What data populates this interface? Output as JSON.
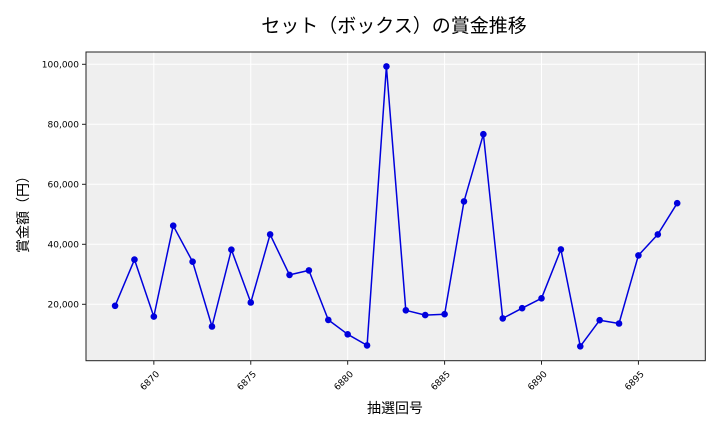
{
  "chart_data": {
    "type": "line",
    "title": "セット（ボックス）の賞金推移",
    "xlabel": "抽選回号",
    "ylabel": "賞金額（円）",
    "x": [
      6868,
      6869,
      6870,
      6871,
      6872,
      6873,
      6874,
      6875,
      6876,
      6877,
      6878,
      6879,
      6880,
      6881,
      6882,
      6883,
      6884,
      6885,
      6886,
      6887,
      6888,
      6889,
      6890,
      6891,
      6892,
      6893,
      6894,
      6895,
      6896,
      6897
    ],
    "series": [
      {
        "name": "賞金額",
        "color": "#0000dd",
        "marker": "circle",
        "values": [
          19500,
          34900,
          15900,
          46200,
          34200,
          12600,
          38200,
          20600,
          43300,
          29800,
          31300,
          14800,
          10000,
          6300,
          99300,
          18000,
          16400,
          16700,
          54300,
          76700,
          15300,
          18700,
          22000,
          38300,
          6000,
          14700,
          13600,
          36300,
          43300,
          53700
        ]
      }
    ],
    "xticks": [
      6870,
      6875,
      6880,
      6885,
      6890,
      6895
    ],
    "yticks": [
      20000,
      40000,
      60000,
      80000,
      100000
    ],
    "ytick_labels": [
      "20,000",
      "40,000",
      "60,000",
      "80,000",
      "100,000"
    ],
    "xlim": [
      6866.5,
      6898.45
    ],
    "ylim": [
      1200,
      104100
    ],
    "grid": true,
    "plot_background": "#efefef",
    "legend": null
  }
}
